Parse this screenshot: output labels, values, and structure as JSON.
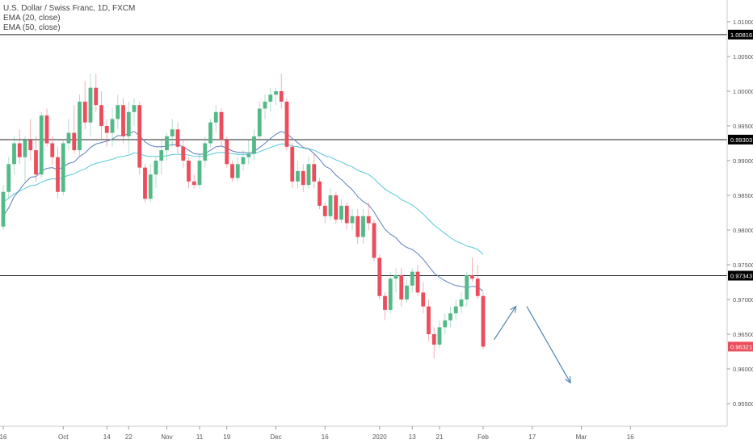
{
  "legend": {
    "title": "U.S. Dollar / Swiss Franc, 1D, FXCM",
    "ema20": "EMA (20, close)",
    "ema50": "EMA (50, close)"
  },
  "colors": {
    "up": "#53b987",
    "down": "#eb4d5c",
    "ema20": "#5b7fbf",
    "ema50": "#55c8d8",
    "level": "#222222",
    "arrow": "#4a86b0",
    "grid_text": "#555555",
    "axis_line": "#cccccc"
  },
  "chart_data": {
    "type": "candlestick",
    "title": "U.S. Dollar / Swiss Franc, 1D, FXCM",
    "xlabel": "",
    "ylabel": "",
    "ylim": [
      0.952,
      1.013
    ],
    "x_range": [
      0,
      100
    ],
    "y_ticks": [
      {
        "value": 1.01,
        "label": "1.01000"
      },
      {
        "value": 1.005,
        "label": "1.00500"
      },
      {
        "value": 1.0,
        "label": "1.00000"
      },
      {
        "value": 0.995,
        "label": "0.99500"
      },
      {
        "value": 0.99,
        "label": "0.99000"
      },
      {
        "value": 0.985,
        "label": "0.98500"
      },
      {
        "value": 0.98,
        "label": "0.98000"
      },
      {
        "value": 0.975,
        "label": "0.97500"
      },
      {
        "value": 0.97,
        "label": "0.97000"
      },
      {
        "value": 0.965,
        "label": "0.96500"
      },
      {
        "value": 0.96,
        "label": "0.96000"
      },
      {
        "value": 0.955,
        "label": "0.95500"
      }
    ],
    "x_ticks": [
      {
        "index": 0,
        "label": "16"
      },
      {
        "index": 11,
        "label": "Oct"
      },
      {
        "index": 19,
        "label": "14"
      },
      {
        "index": 23,
        "label": "22"
      },
      {
        "index": 30,
        "label": "Nov"
      },
      {
        "index": 36,
        "label": "11"
      },
      {
        "index": 41,
        "label": "19"
      },
      {
        "index": 50,
        "label": "Dec"
      },
      {
        "index": 59,
        "label": "16"
      },
      {
        "index": 69,
        "label": "2020"
      },
      {
        "index": 75,
        "label": "13"
      },
      {
        "index": 80,
        "label": "21"
      },
      {
        "index": 88,
        "label": "Feb"
      },
      {
        "index": 97,
        "label": "17"
      },
      {
        "index": 106,
        "label": "Mar"
      },
      {
        "index": 115,
        "label": "16"
      }
    ],
    "levels": [
      {
        "value": 1.00816,
        "label": "1.00816"
      },
      {
        "value": 0.99303,
        "label": "0.99303"
      },
      {
        "value": 0.97343,
        "label": "0.97343"
      }
    ],
    "last_price": {
      "value": 0.96321,
      "label": "0.96321"
    },
    "candles": [
      [
        0.9805,
        0.9865,
        0.98,
        0.9855
      ],
      [
        0.9855,
        0.9905,
        0.9845,
        0.9895
      ],
      [
        0.9895,
        0.9935,
        0.988,
        0.9925
      ],
      [
        0.9925,
        0.9945,
        0.9895,
        0.9905
      ],
      [
        0.9905,
        0.9935,
        0.987,
        0.993
      ],
      [
        0.993,
        0.996,
        0.99,
        0.9915
      ],
      [
        0.9915,
        0.9935,
        0.987,
        0.988
      ],
      [
        0.988,
        0.997,
        0.9875,
        0.9965
      ],
      [
        0.9965,
        0.9975,
        0.992,
        0.9925
      ],
      [
        0.9925,
        0.9935,
        0.9895,
        0.9905
      ],
      [
        0.9905,
        0.992,
        0.9845,
        0.9855
      ],
      [
        0.9855,
        0.993,
        0.985,
        0.9925
      ],
      [
        0.9925,
        0.996,
        0.9915,
        0.994
      ],
      [
        0.994,
        0.998,
        0.991,
        0.9915
      ],
      [
        0.9915,
        0.9995,
        0.9905,
        0.9985
      ],
      [
        0.9985,
        1.0015,
        0.9945,
        0.9955
      ],
      [
        0.9955,
        1.0025,
        0.9935,
        1.0005
      ],
      [
        1.0005,
        1.0025,
        0.997,
        0.998
      ],
      [
        0.998,
        1.0,
        0.993,
        0.995
      ],
      [
        0.995,
        0.996,
        0.992,
        0.994
      ],
      [
        0.994,
        0.9975,
        0.992,
        0.996
      ],
      [
        0.996,
        0.9995,
        0.9945,
        0.998
      ],
      [
        0.998,
        0.999,
        0.9925,
        0.9935
      ],
      [
        0.9935,
        0.9985,
        0.991,
        0.997
      ],
      [
        0.997,
        0.999,
        0.995,
        0.998
      ],
      [
        0.998,
        0.9985,
        0.988,
        0.989
      ],
      [
        0.989,
        0.9895,
        0.984,
        0.9845
      ],
      [
        0.9845,
        0.9895,
        0.984,
        0.988
      ],
      [
        0.988,
        0.9905,
        0.986,
        0.99
      ],
      [
        0.99,
        0.993,
        0.988,
        0.9915
      ],
      [
        0.9915,
        0.994,
        0.99,
        0.9935
      ],
      [
        0.9935,
        0.996,
        0.992,
        0.9945
      ],
      [
        0.9945,
        0.9955,
        0.991,
        0.992
      ],
      [
        0.992,
        0.993,
        0.989,
        0.99
      ],
      [
        0.99,
        0.9905,
        0.986,
        0.987
      ],
      [
        0.987,
        0.988,
        0.986,
        0.9865
      ],
      [
        0.9865,
        0.991,
        0.986,
        0.99
      ],
      [
        0.99,
        0.9935,
        0.989,
        0.9925
      ],
      [
        0.9925,
        0.996,
        0.992,
        0.9955
      ],
      [
        0.9955,
        0.998,
        0.994,
        0.997
      ],
      [
        0.997,
        0.9975,
        0.992,
        0.993
      ],
      [
        0.993,
        0.9935,
        0.989,
        0.9895
      ],
      [
        0.9895,
        0.99,
        0.987,
        0.9875
      ],
      [
        0.9875,
        0.9905,
        0.987,
        0.9895
      ],
      [
        0.9895,
        0.9915,
        0.9885,
        0.9905
      ],
      [
        0.9905,
        0.993,
        0.9895,
        0.991
      ],
      [
        0.991,
        0.9945,
        0.99,
        0.9935
      ],
      [
        0.9935,
        0.9985,
        0.993,
        0.9975
      ],
      [
        0.9975,
        0.9995,
        0.996,
        0.9985
      ],
      [
        0.9985,
        1.0005,
        0.997,
        0.9995
      ],
      [
        0.9995,
        1.0005,
        0.998,
        1.0
      ],
      [
        1.0,
        1.0025,
        0.9975,
        0.9985
      ],
      [
        0.9985,
        0.999,
        0.9915,
        0.992
      ],
      [
        0.992,
        0.9925,
        0.986,
        0.987
      ],
      [
        0.987,
        0.99,
        0.986,
        0.9885
      ],
      [
        0.9885,
        0.9895,
        0.9855,
        0.9865
      ],
      [
        0.9865,
        0.9905,
        0.986,
        0.9895
      ],
      [
        0.9895,
        0.991,
        0.986,
        0.987
      ],
      [
        0.987,
        0.9875,
        0.983,
        0.9835
      ],
      [
        0.9835,
        0.984,
        0.981,
        0.982
      ],
      [
        0.982,
        0.986,
        0.9815,
        0.985
      ],
      [
        0.985,
        0.9855,
        0.981,
        0.9815
      ],
      [
        0.9815,
        0.9845,
        0.981,
        0.9835
      ],
      [
        0.9835,
        0.984,
        0.98,
        0.981
      ],
      [
        0.981,
        0.983,
        0.98,
        0.982
      ],
      [
        0.982,
        0.983,
        0.978,
        0.979
      ],
      [
        0.979,
        0.983,
        0.978,
        0.982
      ],
      [
        0.982,
        0.984,
        0.98,
        0.981
      ],
      [
        0.981,
        0.9815,
        0.9755,
        0.976
      ],
      [
        0.976,
        0.9765,
        0.97,
        0.9705
      ],
      [
        0.9705,
        0.971,
        0.967,
        0.9685
      ],
      [
        0.9685,
        0.974,
        0.968,
        0.973
      ],
      [
        0.973,
        0.9745,
        0.971,
        0.9735
      ],
      [
        0.9735,
        0.9745,
        0.969,
        0.97
      ],
      [
        0.97,
        0.973,
        0.9695,
        0.972
      ],
      [
        0.972,
        0.9745,
        0.971,
        0.974
      ],
      [
        0.974,
        0.975,
        0.9705,
        0.971
      ],
      [
        0.971,
        0.9725,
        0.968,
        0.969
      ],
      [
        0.969,
        0.97,
        0.964,
        0.965
      ],
      [
        0.965,
        0.966,
        0.9615,
        0.9635
      ],
      [
        0.9635,
        0.967,
        0.963,
        0.966
      ],
      [
        0.966,
        0.968,
        0.965,
        0.967
      ],
      [
        0.967,
        0.969,
        0.966,
        0.968
      ],
      [
        0.968,
        0.97,
        0.967,
        0.969
      ],
      [
        0.969,
        0.971,
        0.968,
        0.97
      ],
      [
        0.97,
        0.974,
        0.969,
        0.9735
      ],
      [
        0.9735,
        0.976,
        0.9725,
        0.973
      ],
      [
        0.973,
        0.975,
        0.97,
        0.9705
      ],
      [
        0.9705,
        0.971,
        0.9628,
        0.9632
      ]
    ],
    "series": [
      {
        "name": "EMA (20, close)",
        "values": [
          0.982,
          0.9832,
          0.9848,
          0.9858,
          0.9868,
          0.9876,
          0.9877,
          0.9885,
          0.9889,
          0.989,
          0.9887,
          0.9891,
          0.9896,
          0.9898,
          0.9906,
          0.9911,
          0.9919,
          0.9924,
          0.9926,
          0.9928,
          0.9931,
          0.9936,
          0.9936,
          0.9939,
          0.9942,
          0.9936,
          0.9927,
          0.9922,
          0.992,
          0.992,
          0.9921,
          0.9923,
          0.9923,
          0.992,
          0.9915,
          0.991,
          0.9909,
          0.991,
          0.9915,
          0.992,
          0.9921,
          0.9918,
          0.9914,
          0.9912,
          0.9912,
          0.9911,
          0.9913,
          0.9919,
          0.9925,
          0.9932,
          0.9938,
          0.9942,
          0.9939,
          0.9932,
          0.9926,
          0.9919,
          0.9917,
          0.991,
          0.9902,
          0.9892,
          0.9888,
          0.9879,
          0.9873,
          0.9865,
          0.9858,
          0.9848,
          0.9841,
          0.9836,
          0.9826,
          0.9813,
          0.9801,
          0.9794,
          0.9789,
          0.978,
          0.9775,
          0.9772,
          0.9766,
          0.9758,
          0.9748,
          0.9738,
          0.9732,
          0.9727,
          0.9723,
          0.972,
          0.9719,
          0.9717,
          0.9719,
          0.9718,
          0.9712
        ]
      },
      {
        "name": "EMA (50, close)",
        "values": [
          0.984,
          0.9846,
          0.9852,
          0.9856,
          0.986,
          0.9864,
          0.9865,
          0.9869,
          0.9872,
          0.9874,
          0.9873,
          0.9876,
          0.9879,
          0.9881,
          0.9885,
          0.9888,
          0.9893,
          0.9896,
          0.9898,
          0.99,
          0.9902,
          0.9905,
          0.9906,
          0.9908,
          0.9911,
          0.991,
          0.9907,
          0.9906,
          0.9906,
          0.9906,
          0.9907,
          0.9909,
          0.9909,
          0.9909,
          0.9908,
          0.9906,
          0.9906,
          0.9907,
          0.9909,
          0.9911,
          0.9912,
          0.9911,
          0.991,
          0.9909,
          0.9909,
          0.9909,
          0.991,
          0.9913,
          0.9916,
          0.9919,
          0.9922,
          0.9924,
          0.9924,
          0.9921,
          0.992,
          0.9918,
          0.9917,
          0.9915,
          0.9911,
          0.9907,
          0.9905,
          0.9901,
          0.9898,
          0.9894,
          0.9891,
          0.9886,
          0.9883,
          0.988,
          0.9874,
          0.9866,
          0.9859,
          0.9854,
          0.985,
          0.9844,
          0.984,
          0.9836,
          0.983,
          0.9823,
          0.9815,
          0.9807,
          0.9801,
          0.9795,
          0.9789,
          0.9784,
          0.9781,
          0.9777,
          0.9775,
          0.9772,
          0.9765
        ]
      }
    ],
    "annotations": [
      {
        "type": "arrow",
        "from": [
          90,
          0.9642
        ],
        "to": [
          94,
          0.969
        ]
      },
      {
        "type": "arrow",
        "from": [
          96,
          0.969
        ],
        "to": [
          104,
          0.958
        ]
      }
    ],
    "grid": false
  }
}
